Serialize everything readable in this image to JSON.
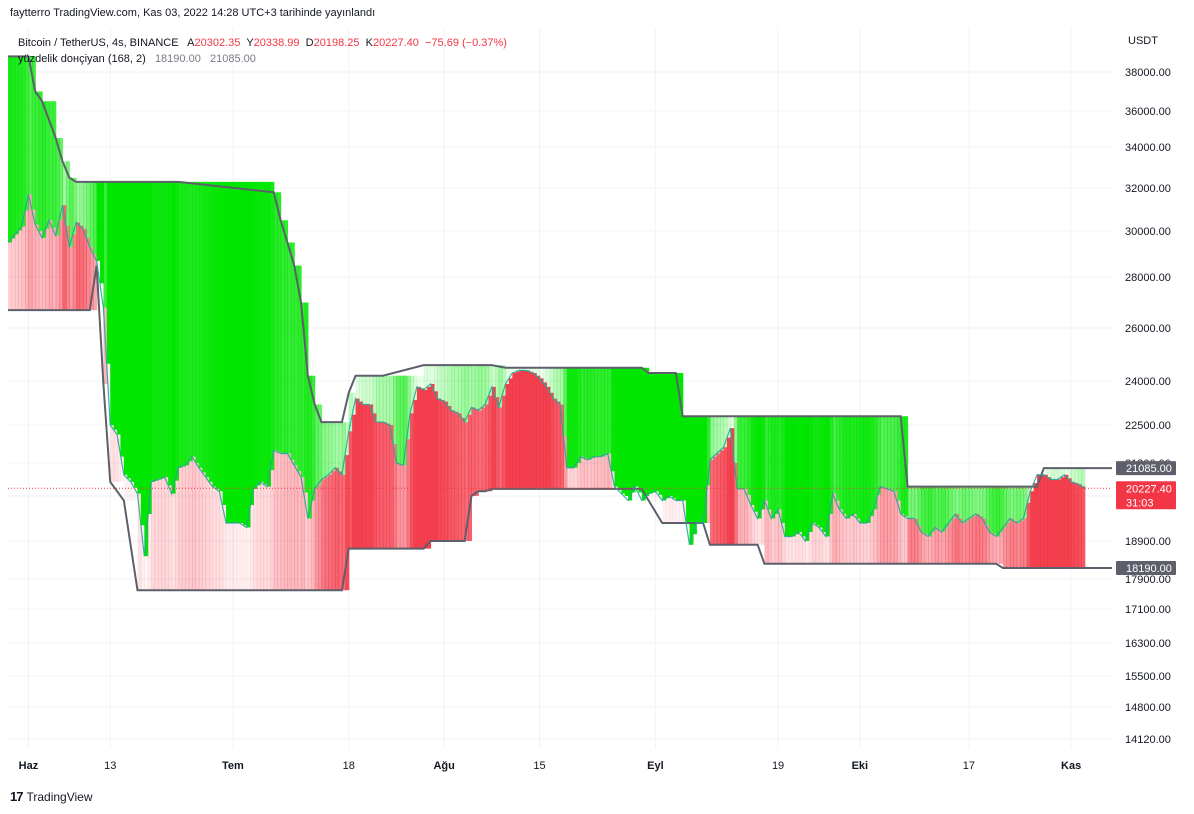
{
  "header": {
    "published": "faytterro TradingView.com, Kas 03, 2022 14:28 UTC+3 tarihinde yayınlandı"
  },
  "legend": {
    "symbol": "Bitcoin / TetherUS, 4s, BINANCE",
    "open_label": "A",
    "open": "20302.35",
    "high_label": "Y",
    "high": "20338.99",
    "low_label": "D",
    "low": "20198.25",
    "close_label": "K",
    "close": "20227.40",
    "change": "−75.69 (−0.37%)",
    "indicator_name": "yüzdelik dонçiyan (168, 2)",
    "indicator_low": "18190.00",
    "indicator_high": "21085.00"
  },
  "footer": {
    "brand": "TradingView"
  },
  "colors": {
    "bull": "#00e600",
    "bear": "#f23645",
    "channel_line": "#5d606b",
    "price_line": "#f23645"
  },
  "chart_data": {
    "type": "line",
    "currency_label": "USDT",
    "y_ticks": [
      38000,
      36000,
      34000,
      32000,
      30000,
      28000,
      26000,
      24000,
      22500,
      21300,
      19900,
      18900,
      17900,
      17100,
      16300,
      15500,
      14800,
      14120
    ],
    "y_tick_labels": [
      "38000.00",
      "36000.00",
      "34000.00",
      "32000.00",
      "30000.00",
      "28000.00",
      "26000.00",
      "24000.00",
      "22500.00",
      "21300.00",
      "19900.00",
      "18900.00",
      "17900.00",
      "17100.00",
      "16300.00",
      "15500.00",
      "14800.00",
      "14120.00"
    ],
    "x_ticks": [
      {
        "label": "Haz",
        "bold": true,
        "x": "2022-06-01"
      },
      {
        "label": "13",
        "bold": false,
        "x": "2022-06-13"
      },
      {
        "label": "Tem",
        "bold": true,
        "x": "2022-07-01"
      },
      {
        "label": "18",
        "bold": false,
        "x": "2022-07-18"
      },
      {
        "label": "Ağu",
        "bold": true,
        "x": "2022-08-01"
      },
      {
        "label": "15",
        "bold": false,
        "x": "2022-08-15"
      },
      {
        "label": "Eyl",
        "bold": true,
        "x": "2022-09-01"
      },
      {
        "label": "19",
        "bold": false,
        "x": "2022-09-19"
      },
      {
        "label": "Eki",
        "bold": true,
        "x": "2022-10-01"
      },
      {
        "label": "17",
        "bold": false,
        "x": "2022-10-17"
      },
      {
        "label": "Kas",
        "bold": true,
        "x": "2022-11-01"
      }
    ],
    "x_range": [
      "2022-05-29",
      "2022-11-07"
    ],
    "last_price": 20227.4,
    "last_price_label": "20227.40",
    "countdown_label": "31:03",
    "upper_channel_label": "21085.00",
    "upper_channel_value": 21085,
    "lower_channel_label": "18190.00",
    "lower_channel_value": 18190,
    "series": [
      {
        "role": "upper",
        "x": [
          "2022-05-29",
          "2022-06-01",
          "2022-06-02",
          "2022-06-03",
          "2022-06-05",
          "2022-06-06",
          "2022-06-07",
          "2022-06-08",
          "2022-06-23",
          "2022-07-07",
          "2022-07-08",
          "2022-07-09",
          "2022-07-10",
          "2022-07-11",
          "2022-07-12",
          "2022-07-13",
          "2022-07-14",
          "2022-07-15",
          "2022-07-17",
          "2022-07-18",
          "2022-07-19",
          "2022-07-20",
          "2022-07-23",
          "2022-07-29",
          "2022-08-04",
          "2022-08-08",
          "2022-08-10",
          "2022-08-30",
          "2022-08-31",
          "2022-09-03",
          "2022-09-04",
          "2022-09-05",
          "2022-09-06",
          "2022-09-09",
          "2022-09-10",
          "2022-09-12",
          "2022-09-14",
          "2022-09-17",
          "2022-10-02",
          "2022-10-07",
          "2022-10-08",
          "2022-10-27",
          "2022-10-28",
          "2022-11-07"
        ],
        "y": [
          38800,
          38800,
          37000,
          36500,
          34500,
          33300,
          32500,
          32300,
          32300,
          31800,
          30500,
          29500,
          28500,
          27000,
          24200,
          23200,
          22600,
          22600,
          22600,
          23600,
          24200,
          24200,
          24200,
          24600,
          24600,
          24600,
          24500,
          24500,
          24300,
          24300,
          24300,
          22800,
          22800,
          22800,
          22800,
          22800,
          22800,
          22800,
          22800,
          22800,
          20300,
          20300,
          21085,
          21085
        ]
      },
      {
        "role": "lower",
        "x": [
          "2022-05-29",
          "2022-06-10",
          "2022-06-11",
          "2022-06-12",
          "2022-06-13",
          "2022-06-15",
          "2022-06-17",
          "2022-06-18",
          "2022-07-17",
          "2022-07-18",
          "2022-07-29",
          "2022-07-30",
          "2022-08-04",
          "2022-08-05",
          "2022-08-06",
          "2022-08-07",
          "2022-08-08",
          "2022-08-14",
          "2022-08-30",
          "2022-08-31",
          "2022-09-02",
          "2022-09-03",
          "2022-09-08",
          "2022-09-09",
          "2022-09-16",
          "2022-09-17",
          "2022-10-01",
          "2022-10-02",
          "2022-10-21",
          "2022-10-22",
          "2022-11-07"
        ],
        "y": [
          26700,
          26700,
          28500,
          23900,
          20500,
          19800,
          17600,
          17600,
          17600,
          18700,
          18700,
          18900,
          18900,
          19900,
          20100,
          20100,
          20200,
          20200,
          20200,
          19800,
          19300,
          19300,
          19300,
          18800,
          18800,
          18300,
          18300,
          18300,
          18300,
          18190,
          18190
        ]
      },
      {
        "role": "price",
        "x": [
          "2022-05-29",
          "2022-05-31",
          "2022-06-01",
          "2022-06-02",
          "2022-06-03",
          "2022-06-04",
          "2022-06-05",
          "2022-06-06",
          "2022-06-07",
          "2022-06-08",
          "2022-06-09",
          "2022-06-10",
          "2022-06-11",
          "2022-06-12",
          "2022-06-13",
          "2022-06-14",
          "2022-06-15",
          "2022-06-16",
          "2022-06-17",
          "2022-06-18",
          "2022-06-19",
          "2022-06-20",
          "2022-06-21",
          "2022-06-22",
          "2022-06-23",
          "2022-06-24",
          "2022-06-25",
          "2022-06-26",
          "2022-06-27",
          "2022-06-28",
          "2022-06-29",
          "2022-06-30",
          "2022-07-01",
          "2022-07-02",
          "2022-07-03",
          "2022-07-04",
          "2022-07-05",
          "2022-07-06",
          "2022-07-07",
          "2022-07-08",
          "2022-07-09",
          "2022-07-10",
          "2022-07-11",
          "2022-07-12",
          "2022-07-13",
          "2022-07-14",
          "2022-07-15",
          "2022-07-16",
          "2022-07-17",
          "2022-07-18",
          "2022-07-19",
          "2022-07-20",
          "2022-07-21",
          "2022-07-22",
          "2022-07-23",
          "2022-07-24",
          "2022-07-25",
          "2022-07-26",
          "2022-07-27",
          "2022-07-28",
          "2022-07-29",
          "2022-07-30",
          "2022-07-31",
          "2022-08-01",
          "2022-08-02",
          "2022-08-03",
          "2022-08-04",
          "2022-08-05",
          "2022-08-06",
          "2022-08-07",
          "2022-08-08",
          "2022-08-09",
          "2022-08-10",
          "2022-08-11",
          "2022-08-12",
          "2022-08-13",
          "2022-08-14",
          "2022-08-15",
          "2022-08-16",
          "2022-08-17",
          "2022-08-18",
          "2022-08-19",
          "2022-08-20",
          "2022-08-21",
          "2022-08-22",
          "2022-08-23",
          "2022-08-24",
          "2022-08-25",
          "2022-08-26",
          "2022-08-27",
          "2022-08-28",
          "2022-08-29",
          "2022-08-30",
          "2022-08-31",
          "2022-09-01",
          "2022-09-02",
          "2022-09-03",
          "2022-09-04",
          "2022-09-05",
          "2022-09-06",
          "2022-09-07",
          "2022-09-08",
          "2022-09-09",
          "2022-09-10",
          "2022-09-11",
          "2022-09-12",
          "2022-09-13",
          "2022-09-14",
          "2022-09-15",
          "2022-09-16",
          "2022-09-17",
          "2022-09-18",
          "2022-09-19",
          "2022-09-20",
          "2022-09-21",
          "2022-09-22",
          "2022-09-23",
          "2022-09-24",
          "2022-09-25",
          "2022-09-26",
          "2022-09-27",
          "2022-09-28",
          "2022-09-29",
          "2022-09-30",
          "2022-10-01",
          "2022-10-02",
          "2022-10-03",
          "2022-10-04",
          "2022-10-05",
          "2022-10-06",
          "2022-10-07",
          "2022-10-08",
          "2022-10-09",
          "2022-10-10",
          "2022-10-11",
          "2022-10-12",
          "2022-10-13",
          "2022-10-14",
          "2022-10-15",
          "2022-10-16",
          "2022-10-17",
          "2022-10-18",
          "2022-10-19",
          "2022-10-20",
          "2022-10-21",
          "2022-10-22",
          "2022-10-23",
          "2022-10-24",
          "2022-10-25",
          "2022-10-26",
          "2022-10-27",
          "2022-10-28",
          "2022-10-29",
          "2022-10-30",
          "2022-10-31",
          "2022-11-01",
          "2022-11-02",
          "2022-11-03"
        ],
        "y": [
          29500,
          30200,
          31700,
          30300,
          29700,
          30500,
          29800,
          31200,
          29300,
          30400,
          30100,
          29300,
          28700,
          26800,
          22500,
          22200,
          20800,
          20500,
          20000,
          18500,
          20500,
          20600,
          20700,
          20000,
          21100,
          21200,
          21500,
          21100,
          20700,
          20300,
          20100,
          19300,
          19300,
          19300,
          19200,
          20200,
          20500,
          20300,
          21700,
          21600,
          21600,
          21200,
          20700,
          19400,
          20200,
          20600,
          20800,
          21100,
          20800,
          22300,
          23400,
          23200,
          23200,
          22600,
          22600,
          22500,
          21300,
          21200,
          22900,
          23800,
          23700,
          23900,
          23400,
          23300,
          23000,
          22900,
          22600,
          23100,
          23000,
          23200,
          23800,
          23100,
          23900,
          24300,
          24400,
          24400,
          24300,
          24100,
          23800,
          23400,
          23200,
          21100,
          21100,
          21500,
          21400,
          21500,
          21500,
          21600,
          20300,
          20000,
          19800,
          20300,
          19800,
          20000,
          20100,
          19800,
          19900,
          19800,
          19800,
          18800,
          19300,
          19300,
          21400,
          21600,
          21800,
          22400,
          20200,
          20200,
          19700,
          19400,
          19800,
          19400,
          19600,
          19000,
          19000,
          19100,
          18900,
          19300,
          19200,
          19000,
          20000,
          19600,
          19400,
          19500,
          19300,
          19300,
          19600,
          20300,
          20200,
          20100,
          19500,
          19400,
          19400,
          19100,
          19000,
          19200,
          19100,
          19300,
          19500,
          19300,
          19400,
          19500,
          19400,
          19100,
          19000,
          19200,
          19400,
          19300,
          19400,
          20100,
          20800,
          20800,
          20600,
          20600,
          20800,
          20500,
          20400,
          20227.4
        ]
      }
    ]
  }
}
